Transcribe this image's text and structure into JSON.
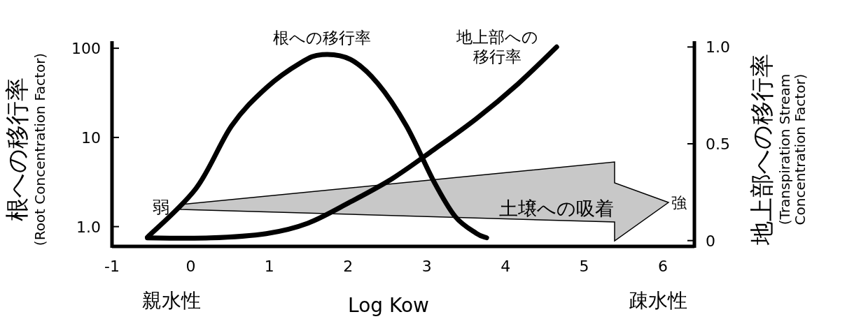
{
  "chart_data": {
    "type": "line",
    "xlabel": "Log Kow",
    "ylabel": "根への移行率\n(Root Concentration Factor)",
    "y2label": "地上部への移行率\n(Transpiration Stream\nConcentration Factor)",
    "xlim": [
      -1,
      6.4
    ],
    "xticks": [
      -1,
      0,
      1,
      2,
      3,
      4,
      5,
      6
    ],
    "ylim": [
      0.6,
      120
    ],
    "yticks": [
      {
        "value": 1,
        "label": "1.0"
      },
      10,
      100
    ],
    "y2lim": [
      -0.03,
      1.03
    ],
    "y2ticks": [
      0,
      0.5,
      {
        "value": 1,
        "label": "1.0"
      }
    ],
    "log": "y",
    "grid": false,
    "line_style": "solid",
    "marker": "none",
    "series": [
      {
        "name": "根への移行率",
        "color": "#000000",
        "x": [
          -0.55,
          0.07,
          0.52,
          0.96,
          1.4,
          1.67,
          2.03,
          2.38,
          2.74,
          3.09,
          3.36,
          3.63,
          3.76
        ],
        "values": [
          0.76,
          2.7,
          13.5,
          36,
          69,
          85,
          75,
          40,
          13.5,
          3.2,
          1.3,
          0.84,
          0.75
        ]
      },
      {
        "name": "地上部への移行率",
        "color": "#000000",
        "axis": "y2",
        "x": [
          -0.55,
          0.25,
          0.96,
          1.49,
          2.03,
          2.56,
          3.09,
          3.63,
          4.16,
          4.65
        ],
        "values": [
          0.014,
          0.014,
          0.036,
          0.09,
          0.2,
          0.32,
          0.47,
          0.63,
          0.81,
          1.0
        ]
      }
    ],
    "annotations": [
      "弱",
      "強",
      "土壌への吸着",
      "親水性",
      "疎水性"
    ]
  }
}
